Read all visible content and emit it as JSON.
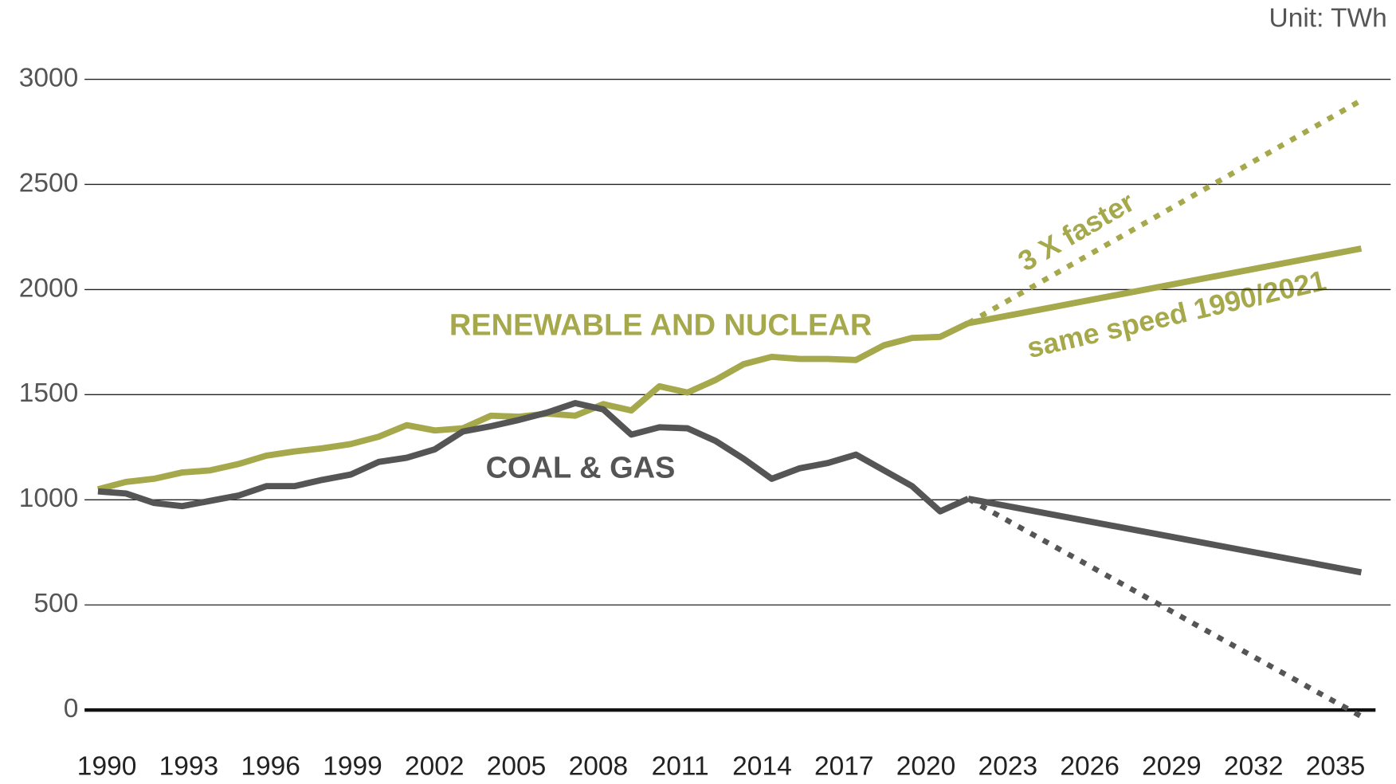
{
  "chart_data": {
    "type": "line",
    "unit_label": "Unit: TWh",
    "ylim": [
      0,
      3000
    ],
    "yticks": [
      0,
      500,
      1000,
      1500,
      2000,
      2500,
      3000
    ],
    "xlim": [
      1990,
      2035
    ],
    "xticks": [
      1990,
      1993,
      1996,
      1999,
      2002,
      2005,
      2008,
      2011,
      2014,
      2017,
      2020,
      2023,
      2026,
      2029,
      2032,
      2035
    ],
    "grid": true,
    "series": [
      {
        "name": "RENEWABLE AND NUCLEAR",
        "color": "#a5a84b",
        "dash": false,
        "x": [
          1990,
          1991,
          1992,
          1993,
          1994,
          1995,
          1996,
          1997,
          1998,
          1999,
          2000,
          2001,
          2002,
          2003,
          2004,
          2005,
          2006,
          2007,
          2008,
          2009,
          2010,
          2011,
          2012,
          2013,
          2014,
          2015,
          2016,
          2017,
          2018,
          2019,
          2020,
          2021
        ],
        "values": [
          1050,
          1085,
          1100,
          1130,
          1140,
          1170,
          1210,
          1230,
          1245,
          1265,
          1300,
          1355,
          1330,
          1340,
          1400,
          1395,
          1410,
          1400,
          1455,
          1425,
          1540,
          1510,
          1570,
          1645,
          1680,
          1670,
          1670,
          1665,
          1735,
          1770,
          1775,
          1840
        ]
      },
      {
        "name": "COAL & GAS",
        "color": "#555555",
        "dash": false,
        "x": [
          1990,
          1991,
          1992,
          1993,
          1994,
          1995,
          1996,
          1997,
          1998,
          1999,
          2000,
          2001,
          2002,
          2003,
          2004,
          2005,
          2006,
          2007,
          2008,
          2009,
          2010,
          2011,
          2012,
          2013,
          2014,
          2015,
          2016,
          2017,
          2018,
          2019,
          2020,
          2021
        ],
        "values": [
          1040,
          1030,
          985,
          970,
          995,
          1020,
          1065,
          1065,
          1095,
          1120,
          1180,
          1200,
          1240,
          1325,
          1350,
          1380,
          1415,
          1460,
          1430,
          1310,
          1345,
          1340,
          1280,
          1195,
          1100,
          1150,
          1175,
          1215,
          1140,
          1065,
          945,
          1005
        ]
      },
      {
        "name": "same speed 1990/2021",
        "color": "#a5a84b",
        "dash": false,
        "x": [
          2021,
          2035
        ],
        "values": [
          1840,
          2195
        ]
      },
      {
        "name": "3 X faster",
        "color": "#a5a84b",
        "dash": true,
        "x": [
          2021,
          2035
        ],
        "values": [
          1840,
          2900
        ]
      },
      {
        "name": "same speed 1990/2021",
        "color": "#555555",
        "dash": false,
        "x": [
          2021,
          2035
        ],
        "values": [
          1005,
          655
        ]
      },
      {
        "name": "3 X faster",
        "color": "#555555",
        "dash": true,
        "x": [
          2021,
          2035
        ],
        "values": [
          1005,
          -30
        ]
      }
    ]
  }
}
